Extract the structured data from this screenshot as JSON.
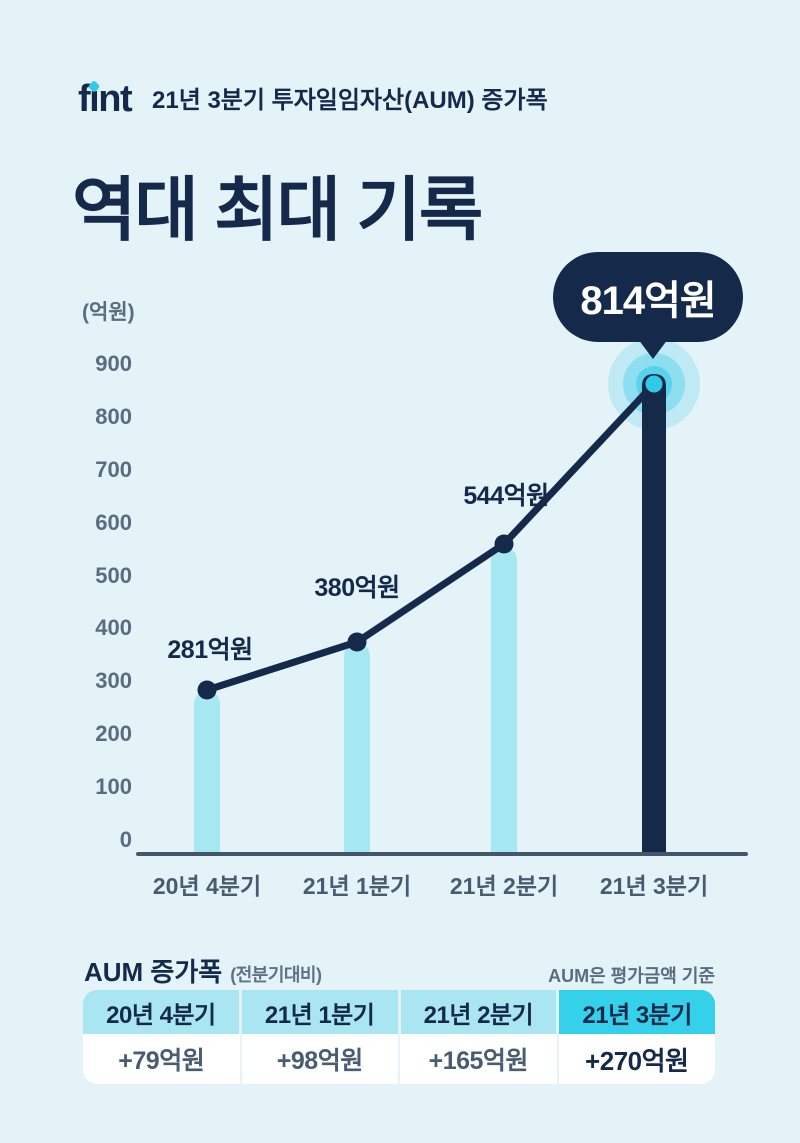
{
  "header": {
    "logo": "fint",
    "subtitle": "21년 3분기 투자일임자산(AUM) 증가폭",
    "title": "역대 최대 기록"
  },
  "chart_data": {
    "type": "bar",
    "title": "21년 3분기 투자일임자산(AUM) 증가폭 역대 최대 기록",
    "unit_label": "(억원)",
    "categories": [
      "20년 4분기",
      "21년 1분기",
      "21년 2분기",
      "21년 3분기"
    ],
    "values": [
      281,
      380,
      544,
      814
    ],
    "value_labels": [
      "281억원",
      "380억원",
      "544억원",
      "814억원"
    ],
    "highlight_index": 3,
    "callout": "814억원",
    "overlay_line": true,
    "y_ticks": [
      0,
      100,
      200,
      300,
      400,
      500,
      600,
      700,
      800,
      900
    ],
    "ylim": [
      0,
      900
    ],
    "xlabel": "",
    "ylabel": "억원",
    "grid": false,
    "legend": false
  },
  "summary": {
    "title": "AUM 증가폭",
    "title_suffix": "(전분기대비)",
    "note": "AUM은 평가금액 기준",
    "columns": [
      {
        "label": "20년 4분기",
        "value": "+79억원",
        "highlight": false
      },
      {
        "label": "21년 1분기",
        "value": "+98억원",
        "highlight": false
      },
      {
        "label": "21년 2분기",
        "value": "+165억원",
        "highlight": false
      },
      {
        "label": "21년 3분기",
        "value": "+270억원",
        "highlight": true
      }
    ]
  },
  "colors": {
    "background": "#E4F3F8",
    "navy": "#15294B",
    "bar_cyan": "#A6E8F2",
    "accent_cyan": "#2FC9E9",
    "axis_gray": "#5A6C80",
    "label_gray": "#4A5B71",
    "table_header": "#A9E6F1",
    "table_highlight": "#35D0EA",
    "white": "#FFFFFF"
  }
}
